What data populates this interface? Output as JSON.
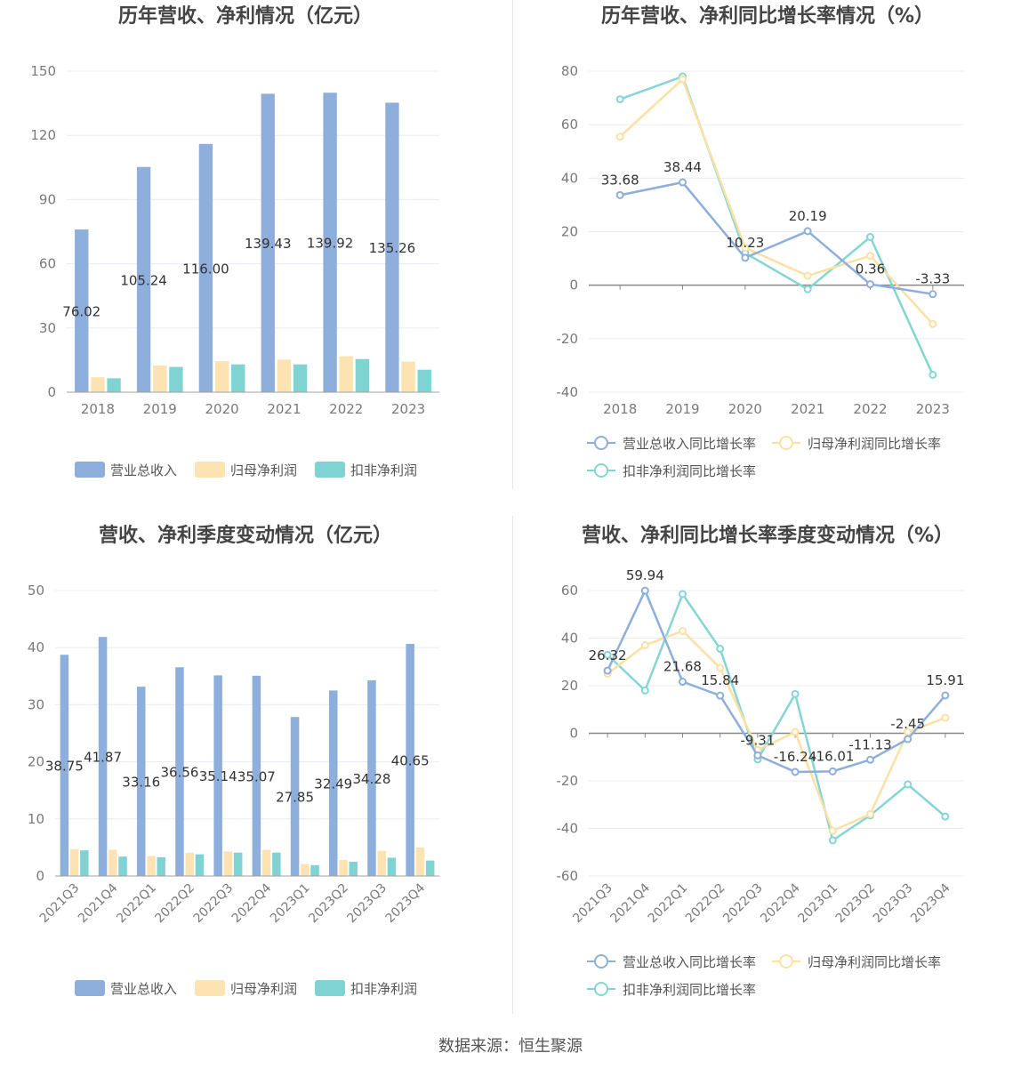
{
  "source_text": "数据来源：恒生聚源",
  "colors": {
    "revenue": "#8eaedb",
    "net_profit": "#fde3b2",
    "deducted_profit": "#7fd3d3",
    "revenue_line": "#8eaedb",
    "net_profit_line": "#fde0a3",
    "deducted_line": "#85d6d3",
    "axis_text": "#7a7a7a",
    "grid": "#e8ecf3",
    "title": "#444444"
  },
  "chart_data": [
    {
      "id": "annual-amounts",
      "type": "bar",
      "title": "历年营收、净利情况（亿元）",
      "categories": [
        "2018",
        "2019",
        "2020",
        "2021",
        "2022",
        "2023"
      ],
      "ylim": [
        0,
        150
      ],
      "yticks": [
        0,
        30,
        60,
        90,
        120,
        150
      ],
      "grid": true,
      "legend_position": "bottom",
      "series": [
        {
          "name": "营业总收入",
          "values": [
            76.02,
            105.24,
            116.0,
            139.43,
            139.92,
            135.26
          ],
          "labels": [
            "76.02",
            "105.24",
            "116.00",
            "139.43",
            "139.92",
            "135.26"
          ]
        },
        {
          "name": "归母净利润",
          "values": [
            7.0,
            12.5,
            14.5,
            15.2,
            16.8,
            14.3
          ]
        },
        {
          "name": "扣非净利润",
          "values": [
            6.5,
            11.8,
            13.0,
            13.0,
            15.5,
            10.5
          ]
        }
      ]
    },
    {
      "id": "annual-growth",
      "type": "line",
      "title": "历年营收、净利同比增长率情况（%）",
      "categories": [
        "2018",
        "2019",
        "2020",
        "2021",
        "2022",
        "2023"
      ],
      "ylim": [
        -40,
        80
      ],
      "yticks": [
        -40,
        -20,
        0,
        20,
        40,
        60,
        80
      ],
      "grid": true,
      "legend_position": "bottom",
      "series": [
        {
          "name": "营业总收入同比增长率",
          "values": [
            33.68,
            38.44,
            10.23,
            20.19,
            0.36,
            -3.33
          ],
          "labels": [
            "33.68",
            "38.44",
            "10.23",
            "20.19",
            "0.36",
            "-3.33"
          ]
        },
        {
          "name": "归母净利润同比增长率",
          "values": [
            55.5,
            77.0,
            14.0,
            3.5,
            11.0,
            -14.5
          ]
        },
        {
          "name": "扣非净利润同比增长率",
          "values": [
            69.5,
            78.0,
            12.0,
            -1.5,
            18.0,
            -33.5
          ]
        }
      ]
    },
    {
      "id": "quarterly-amounts",
      "type": "bar",
      "title": "营收、净利季度变动情况（亿元）",
      "categories": [
        "2021Q3",
        "2021Q4",
        "2022Q1",
        "2022Q2",
        "2022Q3",
        "2022Q4",
        "2023Q1",
        "2023Q2",
        "2023Q3",
        "2023Q4"
      ],
      "ylim": [
        0,
        50
      ],
      "yticks": [
        0,
        10,
        20,
        30,
        40,
        50
      ],
      "grid": true,
      "legend_position": "bottom",
      "series": [
        {
          "name": "营业总收入",
          "values": [
            38.75,
            41.87,
            33.16,
            36.56,
            35.14,
            35.07,
            27.85,
            32.49,
            34.28,
            40.65
          ],
          "labels": [
            "38.75",
            "41.87",
            "33.16",
            "36.56",
            "35.14",
            "35.07",
            "27.85",
            "32.49",
            "34.28",
            "40.65"
          ]
        },
        {
          "name": "归母净利润",
          "values": [
            4.7,
            4.6,
            3.5,
            4.1,
            4.3,
            4.6,
            2.1,
            2.8,
            4.4,
            5.0
          ]
        },
        {
          "name": "扣非净利润",
          "values": [
            4.5,
            3.4,
            3.3,
            3.8,
            4.1,
            4.1,
            1.9,
            2.5,
            3.2,
            2.7
          ]
        }
      ]
    },
    {
      "id": "quarterly-growth",
      "type": "line",
      "title": "营收、净利同比增长率季度变动情况（%）",
      "categories": [
        "2021Q3",
        "2021Q4",
        "2022Q1",
        "2022Q2",
        "2022Q3",
        "2022Q4",
        "2023Q1",
        "2023Q2",
        "2023Q3",
        "2023Q4"
      ],
      "ylim": [
        -60,
        60
      ],
      "yticks": [
        -60,
        -40,
        -20,
        0,
        20,
        40,
        60
      ],
      "grid": true,
      "legend_position": "bottom",
      "series": [
        {
          "name": "营业总收入同比增长率",
          "values": [
            26.32,
            59.94,
            21.68,
            15.84,
            -9.31,
            -16.24,
            -16.01,
            -11.13,
            -2.45,
            15.91
          ],
          "labels": [
            "26.32",
            "59.94",
            "21.68",
            "15.84",
            "-9.31",
            "-16.24",
            "-16.01",
            "-11.13",
            "-2.45",
            "15.91"
          ]
        },
        {
          "name": "归母净利润同比增长率",
          "values": [
            25.0,
            37.0,
            43.0,
            27.5,
            -7.0,
            0.5,
            -41.0,
            -34.0,
            0.5,
            6.5
          ]
        },
        {
          "name": "扣非净利润同比增长率",
          "values": [
            33.0,
            18.0,
            58.5,
            35.5,
            -11.0,
            16.5,
            -45.0,
            -34.5,
            -21.5,
            -35.0
          ]
        }
      ]
    }
  ]
}
